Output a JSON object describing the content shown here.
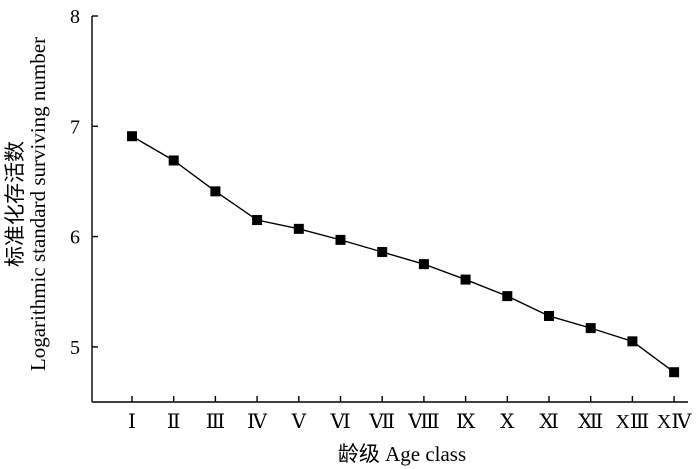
{
  "chart_data": {
    "type": "line",
    "title": "",
    "xlabel": "龄级 Age class",
    "ylabel": "标准化存活数 Logarithmic standard surviving number",
    "ylabel_line1": "标准化存活数",
    "ylabel_line2": "Logarithmic standard surviving number",
    "ylim": [
      4.5,
      8
    ],
    "yticks": [
      5,
      6,
      7,
      8
    ],
    "ytick_labels": [
      "5",
      "6",
      "7",
      "8"
    ],
    "categories": [
      "Ⅰ",
      "Ⅱ",
      "Ⅲ",
      "Ⅳ",
      "Ⅴ",
      "Ⅵ",
      "Ⅶ",
      "Ⅷ",
      "Ⅸ",
      "Ⅹ",
      "Ⅺ",
      "Ⅻ",
      "XⅢ",
      "XⅣ"
    ],
    "series": [
      {
        "values": [
          6.91,
          6.69,
          6.41,
          6.15,
          6.07,
          5.97,
          5.86,
          5.75,
          5.61,
          5.46,
          5.28,
          5.17,
          5.05,
          4.77
        ]
      }
    ],
    "grid": false,
    "legend": "none",
    "marker": "square",
    "colors": {
      "line": "#000000",
      "marker": "#000000",
      "axis": "#000000"
    }
  }
}
